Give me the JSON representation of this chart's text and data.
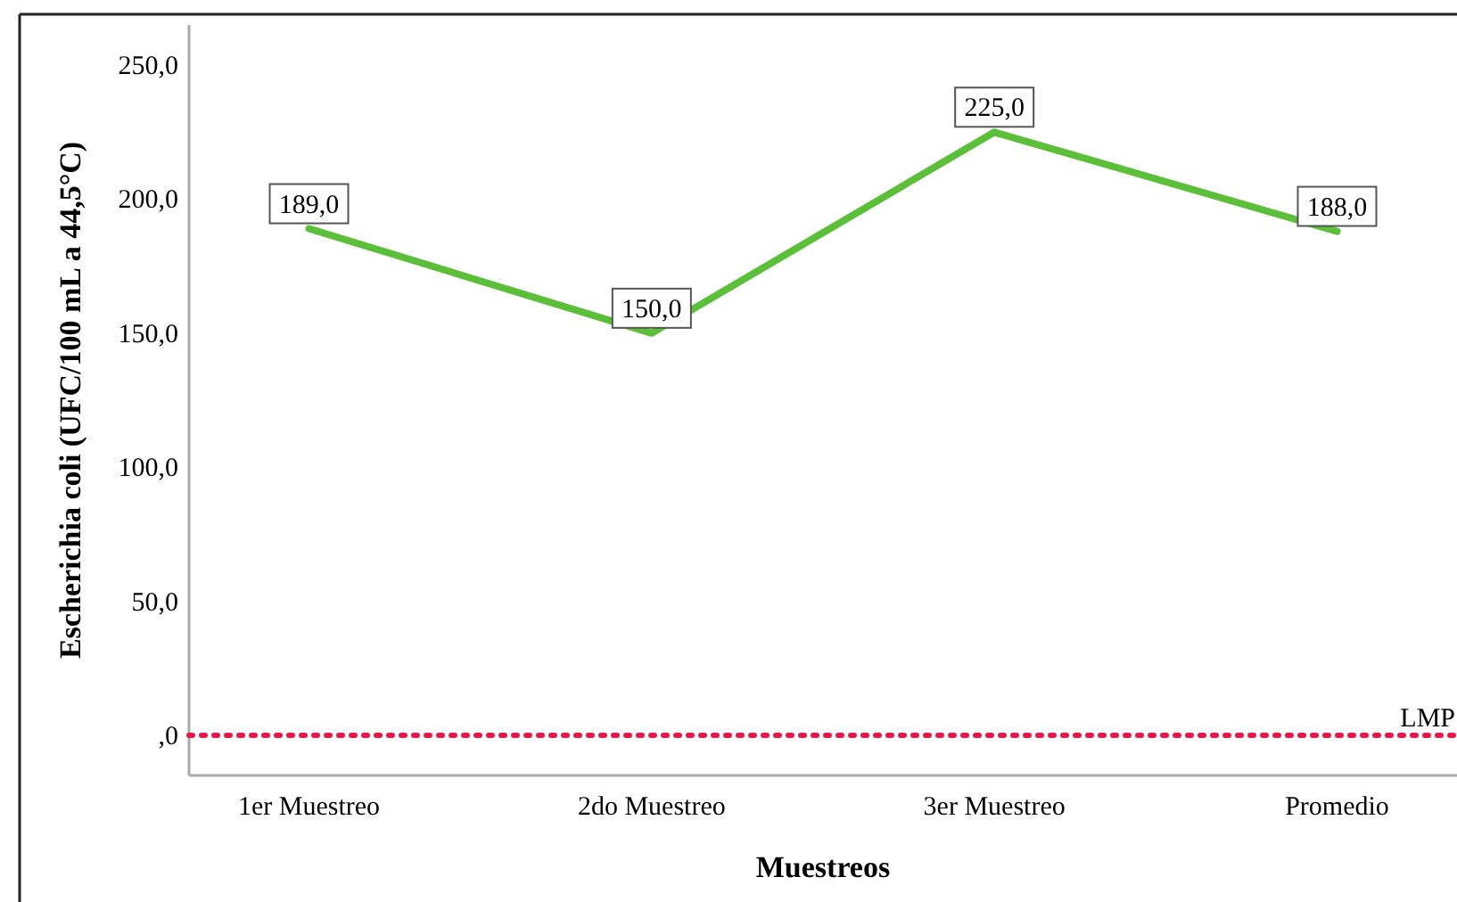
{
  "chart_data": {
    "type": "line",
    "xlabel": "Muestreos",
    "ylabel": "Escherichia coli (UFC/100 mL a 44,5°C)",
    "categories": [
      "1er Muestreo",
      "2do Muestreo",
      "3er Muestreo",
      "Promedio"
    ],
    "series": [
      {
        "color": "#5cbf3a",
        "values": [
          189,
          150,
          225,
          188
        ],
        "value_labels": [
          "189,0",
          "150,0",
          "225,0",
          "188,0"
        ]
      }
    ],
    "ylim": [
      -15,
      265
    ],
    "yticks": [
      {
        "value": 0,
        "label": ",0"
      },
      {
        "value": 50,
        "label": "50,0"
      },
      {
        "value": 100,
        "label": "100,0"
      },
      {
        "value": 150,
        "label": "150,0"
      },
      {
        "value": 200,
        "label": "200,0"
      },
      {
        "value": 250,
        "label": "250,0"
      }
    ],
    "ref_lines": [
      {
        "axis": "y",
        "value": 0,
        "label": "LMP",
        "color": "#e8174a",
        "line_style": "dotted"
      }
    ],
    "grid": false,
    "marker": "none",
    "line_style": "solid"
  }
}
